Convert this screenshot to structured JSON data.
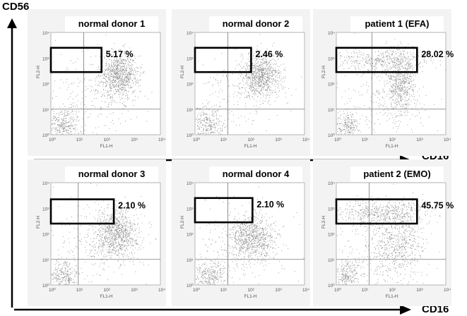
{
  "chart_data": {
    "type": "scatter",
    "description_axis_y": "CD56",
    "description_axis_x": "CD16",
    "panels": [
      {
        "title": "normal donor 1",
        "percent": "5.17 %",
        "percent_value": 5.17,
        "xlabel": "FL1-H",
        "ylabel": "FL2-H",
        "xticks": [
          "10⁰",
          "10¹",
          "10²",
          "10³",
          "10⁴"
        ],
        "yticks": [
          "10⁰",
          "10¹",
          "10²",
          "10³",
          "10⁴"
        ],
        "gate_log": {
          "x": [
            0,
            1.85
          ],
          "y": [
            2.45,
            3.4
          ]
        },
        "quadrant_log": {
          "x": 1.2,
          "y": 1.0
        },
        "populations": [
          {
            "cx": 2.5,
            "cy": 2.35,
            "sx": 0.35,
            "sy": 0.45,
            "n": 900
          },
          {
            "cx": 0.45,
            "cy": 0.35,
            "sx": 0.3,
            "sy": 0.35,
            "n": 350
          },
          {
            "cx": 1.6,
            "cy": 1.6,
            "sx": 1.0,
            "sy": 0.9,
            "n": 250
          }
        ]
      },
      {
        "title": "normal donor 2",
        "percent": "2.46 %",
        "percent_value": 2.46,
        "xlabel": "FL1-H",
        "ylabel": "FL2-H",
        "xticks": [
          "10⁰",
          "10¹",
          "10²",
          "10³",
          "10⁴"
        ],
        "yticks": [
          "10⁰",
          "10¹",
          "10²",
          "10³",
          "10⁴"
        ],
        "gate_log": {
          "x": [
            0,
            2.05
          ],
          "y": [
            2.45,
            3.4
          ]
        },
        "quadrant_log": {
          "x": 1.2,
          "y": 1.0
        },
        "populations": [
          {
            "cx": 2.4,
            "cy": 2.3,
            "sx": 0.35,
            "sy": 0.4,
            "n": 850
          },
          {
            "cx": 0.45,
            "cy": 0.35,
            "sx": 0.3,
            "sy": 0.35,
            "n": 320
          },
          {
            "cx": 1.6,
            "cy": 1.7,
            "sx": 1.0,
            "sy": 0.9,
            "n": 220
          }
        ]
      },
      {
        "title": "patient 1 (EFA)",
        "percent": "28.02 %",
        "percent_value": 28.02,
        "xlabel": "FL1-H",
        "ylabel": "FL2-H",
        "xticks": [
          "10⁰",
          "10¹",
          "10²",
          "10³",
          "10⁴"
        ],
        "yticks": [
          "10⁰",
          "10¹",
          "10²",
          "10³",
          "10⁴"
        ],
        "gate_log": {
          "x": [
            0,
            2.95
          ],
          "y": [
            2.45,
            3.4
          ]
        },
        "quadrant_log": {
          "x": 1.3,
          "y": 1.0
        },
        "populations": [
          {
            "cx": 1.6,
            "cy": 2.9,
            "sx": 0.9,
            "sy": 0.25,
            "n": 450
          },
          {
            "cx": 2.35,
            "cy": 2.0,
            "sx": 0.3,
            "sy": 0.6,
            "n": 600
          },
          {
            "cx": 0.35,
            "cy": 0.35,
            "sx": 0.25,
            "sy": 0.3,
            "n": 260
          },
          {
            "cx": 1.7,
            "cy": 1.4,
            "sx": 0.9,
            "sy": 0.8,
            "n": 220
          }
        ]
      },
      {
        "title": "normal donor 3",
        "percent": "2.10 %",
        "percent_value": 2.1,
        "xlabel": "FL1-H",
        "ylabel": "FL2-H",
        "xticks": [
          "10⁰",
          "10¹",
          "10²",
          "10³",
          "10⁴"
        ],
        "yticks": [
          "10⁰",
          "10¹",
          "10²",
          "10³",
          "10⁴"
        ],
        "gate_log": {
          "x": [
            0,
            2.3
          ],
          "y": [
            2.4,
            3.35
          ]
        },
        "quadrant_log": {
          "x": 1.0,
          "y": 1.0
        },
        "populations": [
          {
            "cx": 2.4,
            "cy": 2.0,
            "sx": 0.4,
            "sy": 0.5,
            "n": 950
          },
          {
            "cx": 0.45,
            "cy": 0.35,
            "sx": 0.28,
            "sy": 0.3,
            "n": 300
          },
          {
            "cx": 1.6,
            "cy": 1.6,
            "sx": 1.0,
            "sy": 0.9,
            "n": 220
          }
        ]
      },
      {
        "title": "normal donor 4",
        "percent": "2.10 %",
        "percent_value": 2.1,
        "xlabel": "FL1-H",
        "ylabel": "FL2-H",
        "xticks": [
          "10⁰",
          "10¹",
          "10²",
          "10³",
          "10⁴"
        ],
        "yticks": [
          "10⁰",
          "10¹",
          "10²",
          "10³",
          "10⁴"
        ],
        "gate_log": {
          "x": [
            0,
            2.1
          ],
          "y": [
            2.45,
            3.4
          ]
        },
        "quadrant_log": {
          "x": 1.2,
          "y": 1.0
        },
        "populations": [
          {
            "cx": 2.05,
            "cy": 1.85,
            "sx": 0.45,
            "sy": 0.45,
            "n": 850
          },
          {
            "cx": 0.55,
            "cy": 0.35,
            "sx": 0.3,
            "sy": 0.3,
            "n": 330
          },
          {
            "cx": 1.6,
            "cy": 1.6,
            "sx": 1.0,
            "sy": 0.9,
            "n": 200
          }
        ]
      },
      {
        "title": "patient 2 (EMO)",
        "percent": "45.75 %",
        "percent_value": 45.75,
        "xlabel": "FL1-H",
        "ylabel": "FL2-H",
        "xticks": [
          "10⁰",
          "10¹",
          "10²",
          "10³",
          "10⁴"
        ],
        "yticks": [
          "10⁰",
          "10¹",
          "10²",
          "10³",
          "10⁴"
        ],
        "gate_log": {
          "x": [
            0,
            2.95
          ],
          "y": [
            2.4,
            3.35
          ]
        },
        "quadrant_log": {
          "x": 1.2,
          "y": 1.0
        },
        "populations": [
          {
            "cx": 1.6,
            "cy": 2.85,
            "sx": 0.9,
            "sy": 0.25,
            "n": 550
          },
          {
            "cx": 2.3,
            "cy": 1.7,
            "sx": 0.45,
            "sy": 0.7,
            "n": 550
          },
          {
            "cx": 0.4,
            "cy": 0.4,
            "sx": 0.25,
            "sy": 0.3,
            "n": 250
          },
          {
            "cx": 1.6,
            "cy": 1.3,
            "sx": 0.9,
            "sy": 0.8,
            "n": 250
          }
        ]
      }
    ]
  },
  "labels": {
    "y_axis": "CD56",
    "x_axis_top": "CD16",
    "x_axis_bottom": "CD16"
  },
  "colors": {
    "dot": "#8a8a8a",
    "axis": "#000000",
    "grid": "#777777",
    "panel_bg": "#f3f3f3"
  }
}
